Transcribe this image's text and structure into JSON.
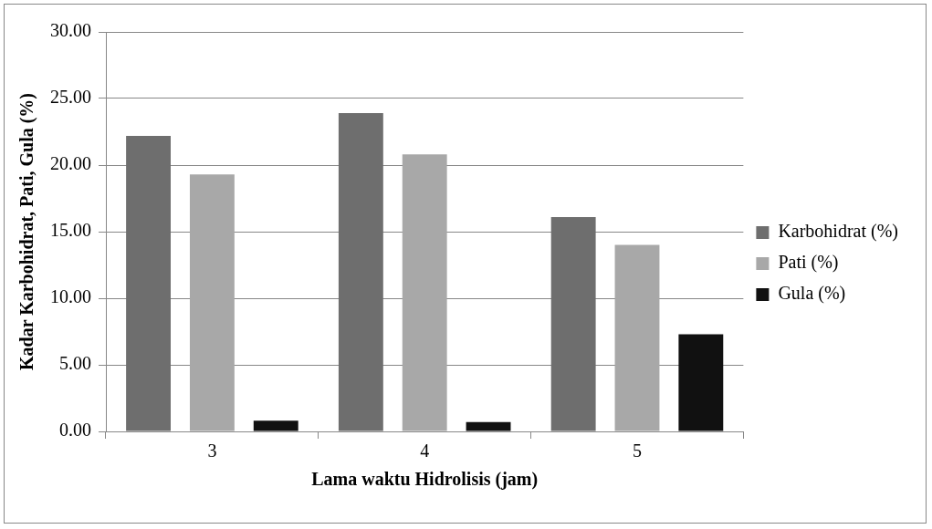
{
  "chart_data": {
    "type": "bar",
    "xlabel": "Lama waktu Hidrolisis (jam)",
    "ylabel": "Kadar Karbohidrat, Pati, Gula (%)",
    "categories": [
      "3",
      "4",
      "5"
    ],
    "series": [
      {
        "name": "Karbohidrat (%)",
        "color": "#6e6e6e",
        "values": [
          22.2,
          23.9,
          16.1
        ]
      },
      {
        "name": "Pati (%)",
        "color": "#a8a8a8",
        "values": [
          19.3,
          20.8,
          14.0
        ]
      },
      {
        "name": "Gula (%)",
        "color": "#111111",
        "values": [
          0.8,
          0.7,
          7.3
        ]
      }
    ],
    "ylim": [
      0,
      30
    ],
    "yticks": [
      {
        "value": 0,
        "label": "0.00"
      },
      {
        "value": 5,
        "label": "5.00"
      },
      {
        "value": 10,
        "label": "10.00"
      },
      {
        "value": 15,
        "label": "15.00"
      },
      {
        "value": 20,
        "label": "20.00"
      },
      {
        "value": 25,
        "label": "25.00"
      },
      {
        "value": 30,
        "label": "30.00"
      }
    ],
    "grid": "y",
    "legend": "right"
  }
}
